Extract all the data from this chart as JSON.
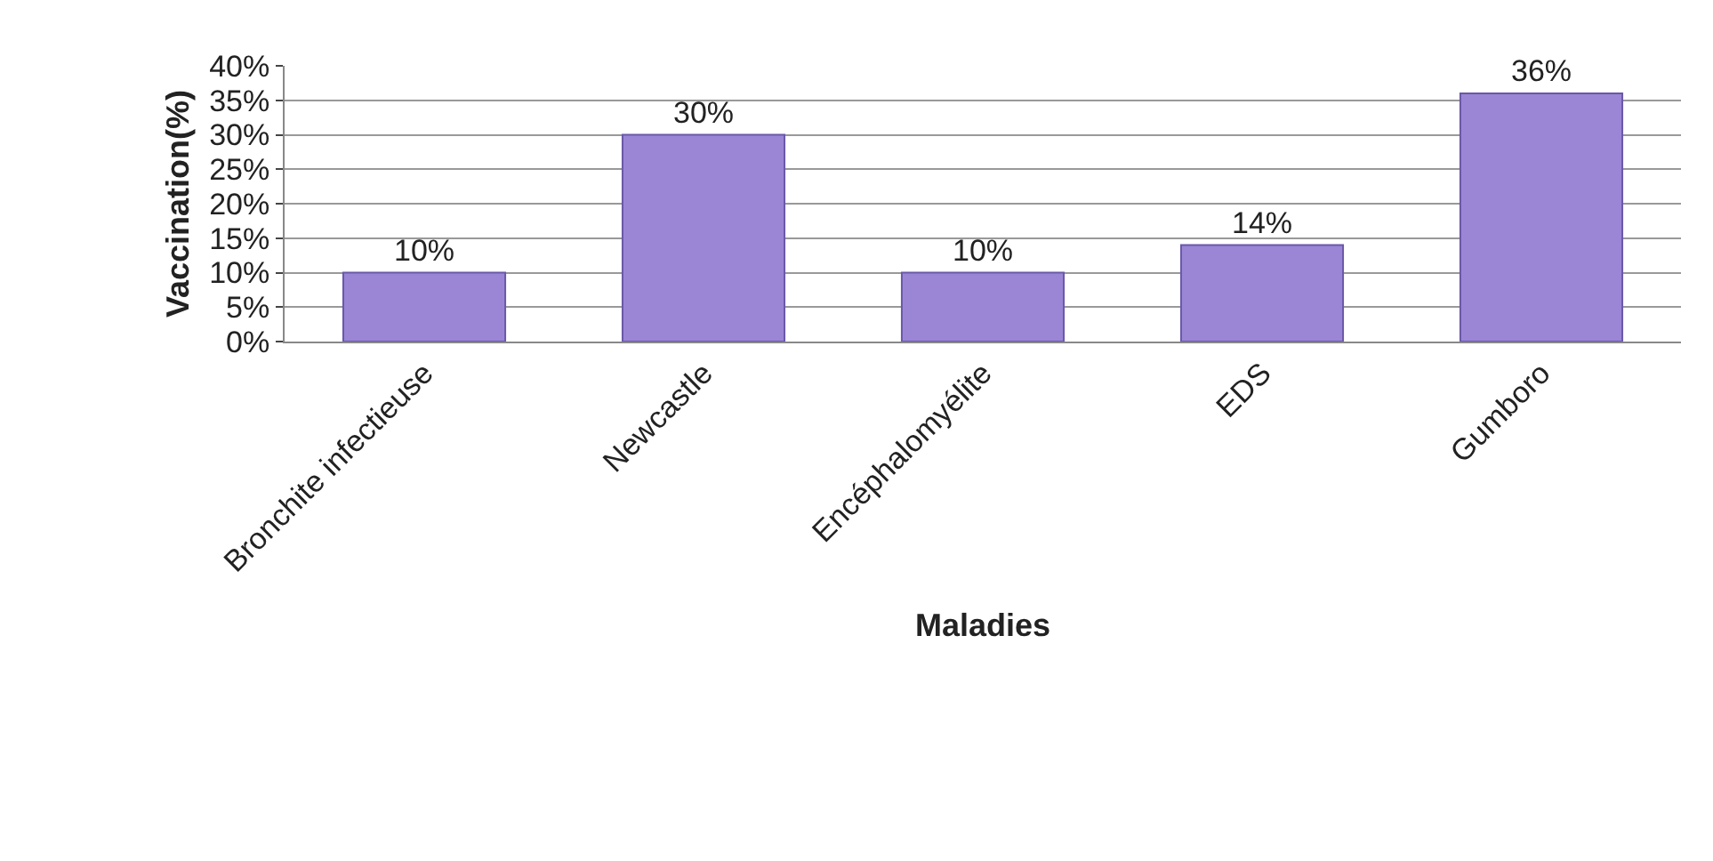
{
  "chart_data": {
    "type": "bar",
    "xlabel": "Maladies",
    "ylabel": "Vaccination(%)",
    "categories": [
      "Bronchite infectieuse",
      "Newcastle",
      "Encéphalomyélite",
      "EDS",
      "Gumboro"
    ],
    "values": [
      10,
      30,
      10,
      14,
      36
    ],
    "value_labels": [
      "10%",
      "30%",
      "10%",
      "14%",
      "36%"
    ],
    "color": "#9b86d6",
    "ylim": [
      0,
      40
    ],
    "yticks": [
      {
        "value": 0,
        "label": "0%"
      },
      {
        "value": 5,
        "label": "5%"
      },
      {
        "value": 10,
        "label": "10%"
      },
      {
        "value": 15,
        "label": "15%"
      },
      {
        "value": 20,
        "label": "20%"
      },
      {
        "value": 25,
        "label": "25%"
      },
      {
        "value": 30,
        "label": "30%"
      },
      {
        "value": 35,
        "label": "35%"
      },
      {
        "value": 40,
        "label": "40%"
      }
    ],
    "grid": "y"
  }
}
